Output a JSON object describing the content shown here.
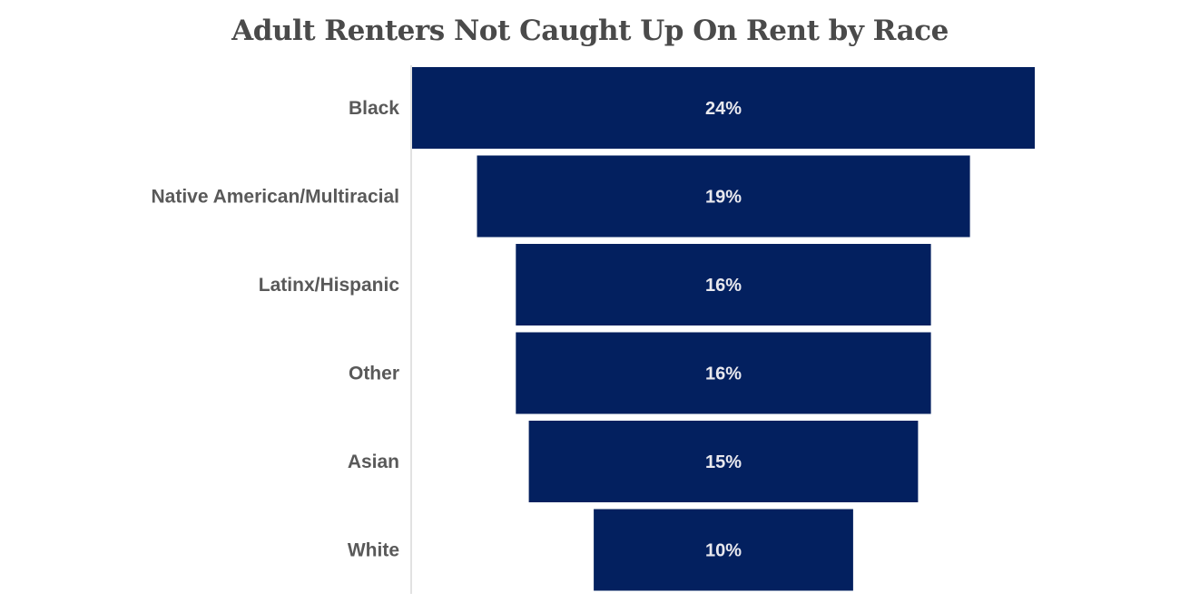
{
  "chart_data": {
    "type": "bar",
    "orientation": "horizontal-funnel",
    "title": "Adult Renters Not Caught Up On Rent by Race",
    "categories": [
      "Black",
      "Native American/Multiracial",
      "Latinx/Hispanic",
      "Other",
      "Asian",
      "White"
    ],
    "values": [
      24,
      19,
      16,
      16,
      15,
      10
    ],
    "value_labels": [
      "24%",
      "19%",
      "16%",
      "16%",
      "15%",
      "10%"
    ],
    "unit": "%",
    "grid": false,
    "legend": "none",
    "colors": {
      "bar": "#03205f",
      "axis_line": "#d9d9d9",
      "category_text": "#595959",
      "value_text": "#e8e8ee",
      "title_text": "#4a4a4a"
    }
  }
}
